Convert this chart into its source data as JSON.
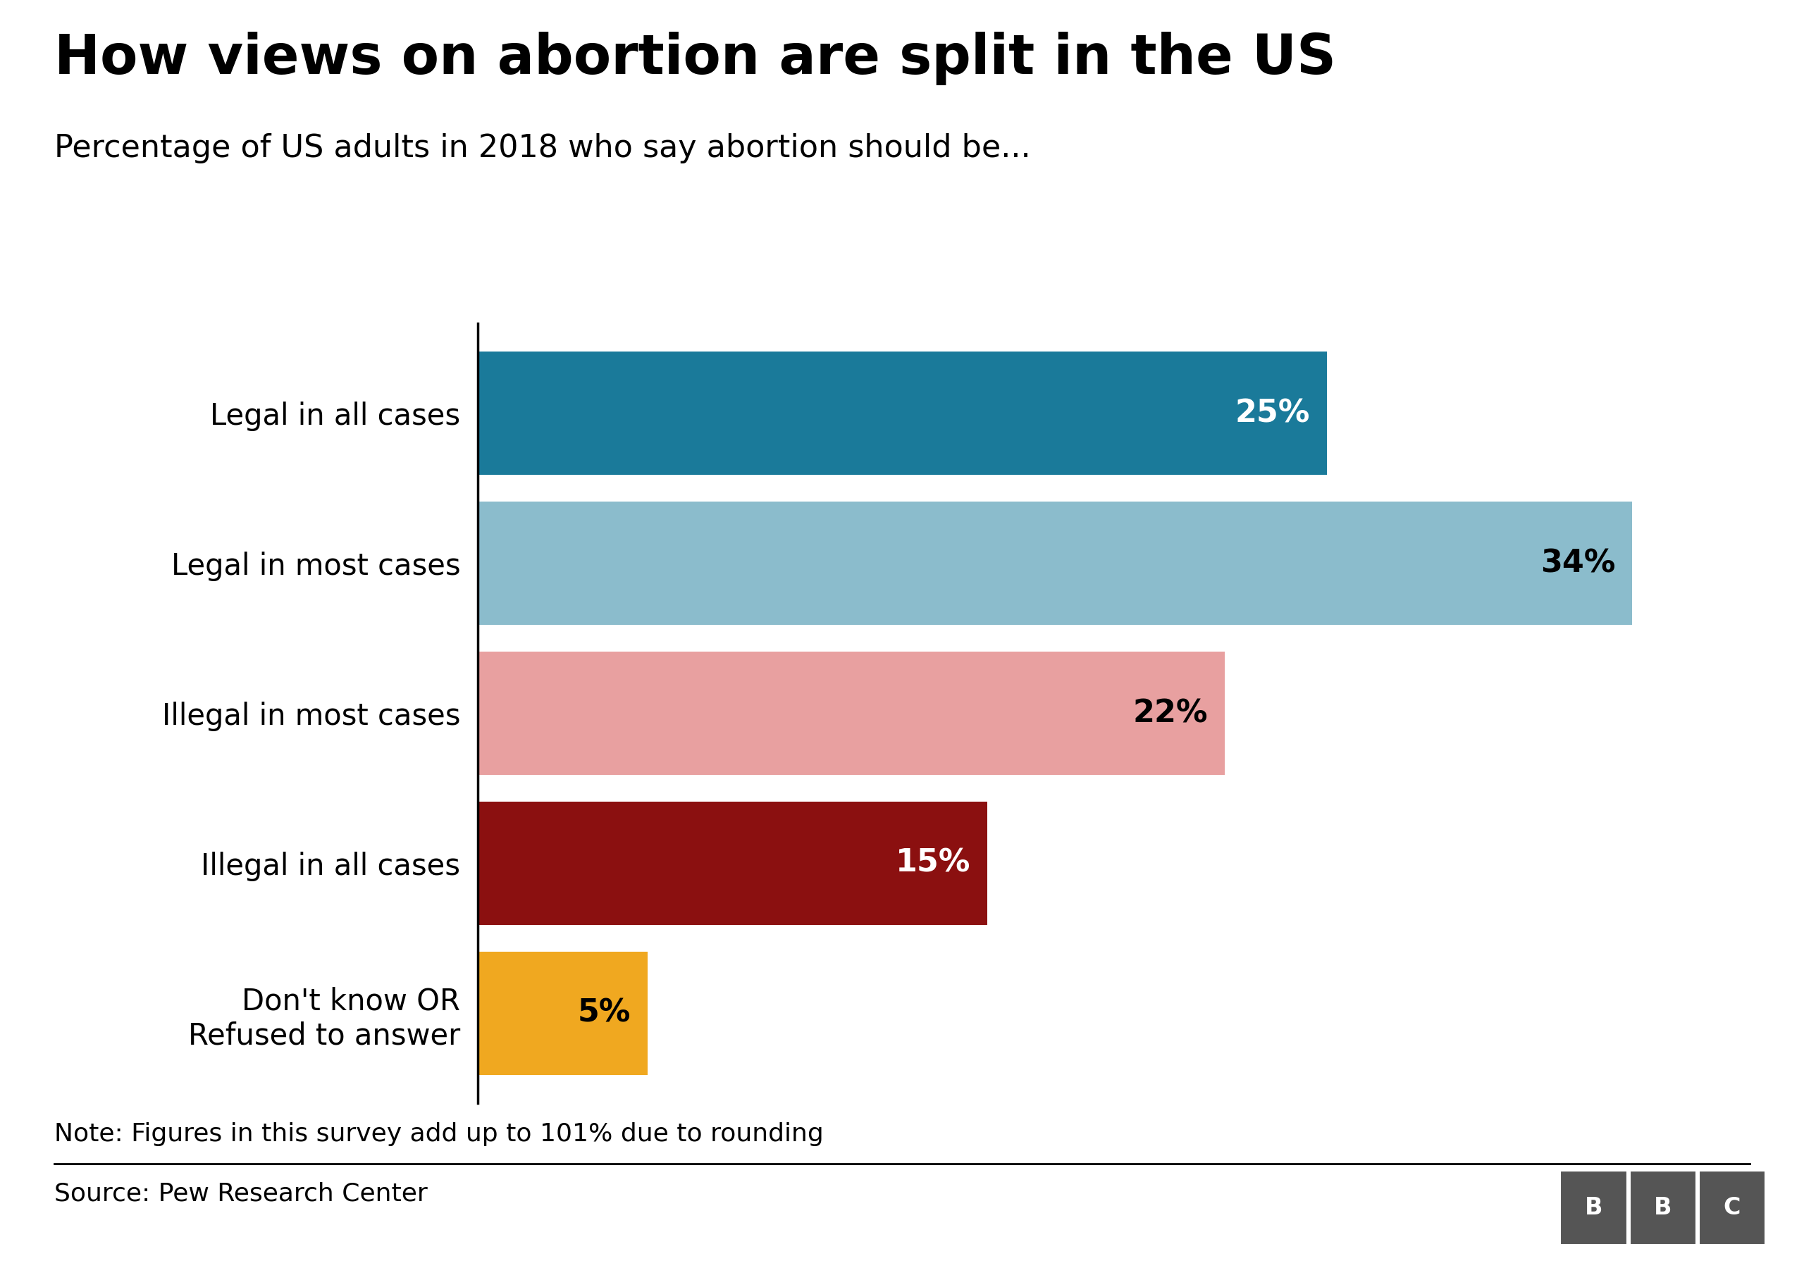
{
  "title": "How views on abortion are split in the US",
  "subtitle": "Percentage of US adults in 2018 who say abortion should be...",
  "categories": [
    "Legal in all cases",
    "Legal in most cases",
    "Illegal in most cases",
    "Illegal in all cases",
    "Don't know OR\nRefused to answer"
  ],
  "values": [
    25,
    34,
    22,
    15,
    5
  ],
  "labels": [
    "25%",
    "34%",
    "22%",
    "15%",
    "5%"
  ],
  "colors": [
    "#1a7a9a",
    "#8bbccc",
    "#e8a0a0",
    "#8b1010",
    "#f0a820"
  ],
  "note": "Note: Figures in this survey add up to 101% due to rounding",
  "source": "Source: Pew Research Center",
  "xlim": [
    0,
    38
  ],
  "label_colors": [
    "white",
    "black",
    "black",
    "white",
    "black"
  ],
  "background_color": "#ffffff",
  "title_fontsize": 56,
  "subtitle_fontsize": 32,
  "tick_fontsize": 30,
  "label_fontsize": 32,
  "note_fontsize": 26,
  "source_fontsize": 26,
  "bar_height": 0.82
}
